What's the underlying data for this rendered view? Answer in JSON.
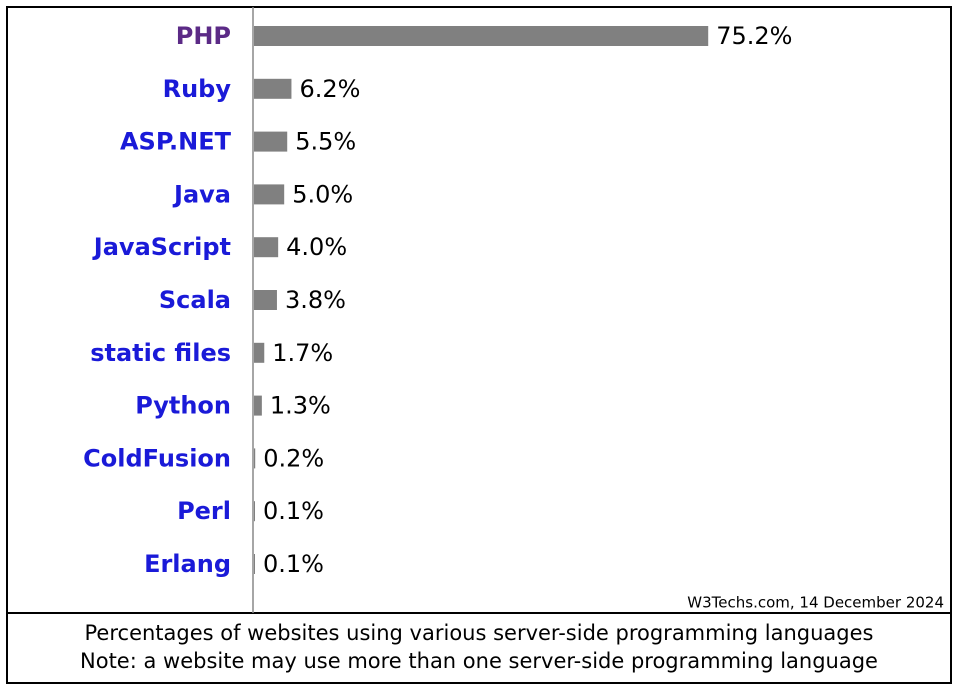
{
  "chart_data": {
    "type": "bar",
    "orientation": "horizontal",
    "categories": [
      "PHP",
      "Ruby",
      "ASP.NET",
      "Java",
      "JavaScript",
      "Scala",
      "static files",
      "Python",
      "ColdFusion",
      "Perl",
      "Erlang"
    ],
    "values": [
      75.2,
      6.2,
      5.5,
      5.0,
      4.0,
      3.8,
      1.7,
      1.3,
      0.2,
      0.1,
      0.1
    ],
    "value_labels": [
      "75.2%",
      "6.2%",
      "5.5%",
      "5.0%",
      "4.0%",
      "3.8%",
      "1.7%",
      "1.3%",
      "0.2%",
      "0.1%",
      "0.1%"
    ],
    "color": "#808080",
    "label_colors": [
      "#5b2a86",
      "#1a1ad8",
      "#1a1ad8",
      "#1a1ad8",
      "#1a1ad8",
      "#1a1ad8",
      "#1a1ad8",
      "#1a1ad8",
      "#1a1ad8",
      "#1a1ad8",
      "#1a1ad8"
    ],
    "source": "W3Techs.com, 14 December 2024",
    "caption": [
      "Percentages of websites using various server-side programming languages",
      "Note: a website may use more than one server-side programming language"
    ]
  }
}
